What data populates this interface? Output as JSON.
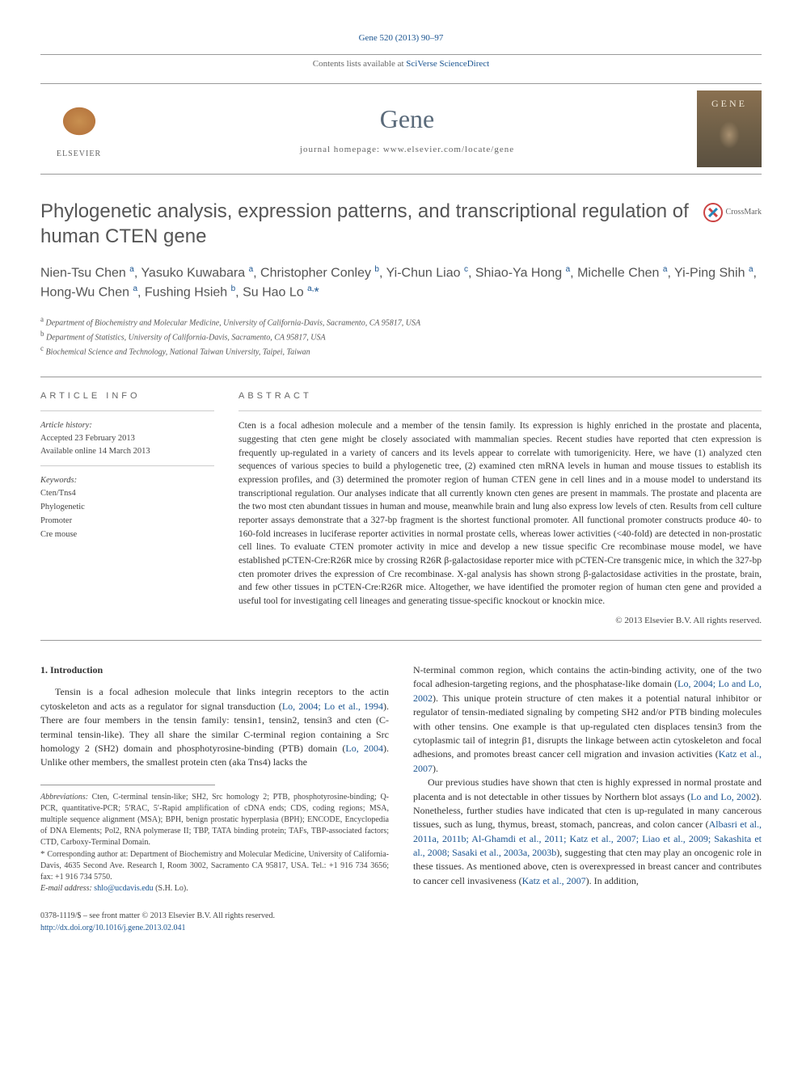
{
  "header": {
    "citation_text": "Gene 520 (2013) 90–97",
    "citation_link_color": "#1a5490",
    "contents_text": "Contents lists available at ",
    "contents_link": "SciVerse ScienceDirect",
    "journal_name": "Gene",
    "homepage_label": "journal homepage: ",
    "homepage_url": "www.elsevier.com/locate/gene",
    "publisher": "ELSEVIER",
    "cover_text": "GENE"
  },
  "article": {
    "title": "Phylogenetic analysis, expression patterns, and transcriptional regulation of human CTEN gene",
    "crossmark_label": "CrossMark",
    "authors_html": "Nien-Tsu Chen <sup>a</sup>, Yasuko Kuwabara <sup>a</sup>, Christopher Conley <sup>b</sup>, Yi-Chun Liao <sup>c</sup>, Shiao-Ya Hong <sup>a</sup>, Michelle Chen <sup>a</sup>, Yi-Ping Shih <sup>a</sup>, Hong-Wu Chen <sup>a</sup>, Fushing Hsieh <sup>b</sup>, Su Hao Lo <sup>a,</sup><span class='star'>*</span>",
    "affiliations": [
      {
        "sup": "a",
        "text": "Department of Biochemistry and Molecular Medicine, University of California-Davis, Sacramento, CA 95817, USA"
      },
      {
        "sup": "b",
        "text": "Department of Statistics, University of California-Davis, Sacramento, CA 95817, USA"
      },
      {
        "sup": "c",
        "text": "Biochemical Science and Technology, National Taiwan University, Taipei, Taiwan"
      }
    ]
  },
  "info": {
    "head": "article info",
    "history_label": "Article history:",
    "accepted": "Accepted 23 February 2013",
    "online": "Available online 14 March 2013",
    "keywords_label": "Keywords:",
    "keywords": [
      "Cten/Tns4",
      "Phylogenetic",
      "Promoter",
      "Cre mouse"
    ]
  },
  "abstract": {
    "head": "abstract",
    "text": "Cten is a focal adhesion molecule and a member of the tensin family. Its expression is highly enriched in the prostate and placenta, suggesting that cten gene might be closely associated with mammalian species. Recent studies have reported that cten expression is frequently up-regulated in a variety of cancers and its levels appear to correlate with tumorigenicity. Here, we have (1) analyzed cten sequences of various species to build a phylogenetic tree, (2) examined cten mRNA levels in human and mouse tissues to establish its expression profiles, and (3) determined the promoter region of human CTEN gene in cell lines and in a mouse model to understand its transcriptional regulation. Our analyses indicate that all currently known cten genes are present in mammals. The prostate and placenta are the two most cten abundant tissues in human and mouse, meanwhile brain and lung also express low levels of cten. Results from cell culture reporter assays demonstrate that a 327-bp fragment is the shortest functional promoter. All functional promoter constructs produce 40- to 160-fold increases in luciferase reporter activities in normal prostate cells, whereas lower activities (<40-fold) are detected in non-prostatic cell lines. To evaluate CTEN promoter activity in mice and develop a new tissue specific Cre recombinase mouse model, we have established pCTEN-Cre:R26R mice by crossing R26R β-galactosidase reporter mice with pCTEN-Cre transgenic mice, in which the 327-bp cten promoter drives the expression of Cre recombinase. X-gal analysis has shown strong β-galactosidase activities in the prostate, brain, and few other tissues in pCTEN-Cre:R26R mice. Altogether, we have identified the promoter region of human cten gene and provided a useful tool for investigating cell lineages and generating tissue-specific knockout or knockin mice.",
    "copyright": "© 2013 Elsevier B.V. All rights reserved."
  },
  "body": {
    "intro_head": "1. Introduction",
    "left_col": {
      "p1": "Tensin is a focal adhesion molecule that links integrin receptors to the actin cytoskeleton and acts as a regulator for signal transduction (<span class='citation'>Lo, 2004; Lo et al., 1994</span>). There are four members in the tensin family: tensin1, tensin2, tensin3 and cten (C-terminal tensin-like). They all share the similar C-terminal region containing a Src homology 2 (SH2) domain and phosphotyrosine-binding (PTB) domain (<span class='citation'>Lo, 2004</span>). Unlike other members, the smallest protein cten (aka Tns4) lacks the"
    },
    "right_col": {
      "p1": "N-terminal common region, which contains the actin-binding activity, one of the two focal adhesion-targeting regions, and the phosphatase-like domain (<span class='citation'>Lo, 2004; Lo and Lo, 2002</span>). This unique protein structure of cten makes it a potential natural inhibitor or regulator of tensin-mediated signaling by competing SH2 and/or PTB binding molecules with other tensins. One example is that up-regulated cten displaces tensin3 from the cytoplasmic tail of integrin β1, disrupts the linkage between actin cytoskeleton and focal adhesions, and promotes breast cancer cell migration and invasion activities (<span class='citation'>Katz et al., 2007</span>).",
      "p2": "Our previous studies have shown that cten is highly expressed in normal prostate and placenta and is not detectable in other tissues by Northern blot assays (<span class='citation'>Lo and Lo, 2002</span>). Nonetheless, further studies have indicated that cten is up-regulated in many cancerous tissues, such as lung, thymus, breast, stomach, pancreas, and colon cancer (<span class='citation'>Albasri et al., 2011a, 2011b; Al-Ghamdi et al., 2011; Katz et al., 2007; Liao et al., 2009; Sakashita et al., 2008; Sasaki et al., 2003a, 2003b</span>), suggesting that cten may play an oncogenic role in these tissues. As mentioned above, cten is overexpressed in breast cancer and contributes to cancer cell invasiveness (<span class='citation'>Katz et al., 2007</span>). In addition,"
    }
  },
  "footnotes": {
    "abbrev_label": "Abbreviations:",
    "abbrev_text": " Cten, C-terminal tensin-like; SH2, Src homology 2; PTB, phosphotyrosine-binding; Q-PCR, quantitative-PCR; 5′RAC, 5′-Rapid amplification of cDNA ends; CDS, coding regions; MSA, multiple sequence alignment (MSA); BPH, benign prostatic hyperplasia (BPH); ENCODE, Encyclopedia of DNA Elements; Pol2, RNA polymerase II; TBP, TATA binding protein; TAFs, TBP-associated factors; CTD, Carboxy-Terminal Domain.",
    "corr_label": "Corresponding author at:",
    "corr_text": " Department of Biochemistry and Molecular Medicine, University of California-Davis, 4635 Second Ave. Research I, Room 3002, Sacramento CA 95817, USA. Tel.: +1 916 734 3656; fax: +1 916 734 5750.",
    "email_label": "E-mail address: ",
    "email": "shlo@ucdavis.edu",
    "email_person": " (S.H. Lo)."
  },
  "bottom": {
    "front_matter": "0378-1119/$ – see front matter © 2013 Elsevier B.V. All rights reserved.",
    "doi": "http://dx.doi.org/10.1016/j.gene.2013.02.041"
  },
  "colors": {
    "link": "#1a5490",
    "text": "#333333",
    "heading_gray": "#5a6a7a",
    "rule": "#999999"
  },
  "fonts": {
    "body": "Georgia, Times New Roman, serif",
    "sans": "Helvetica Neue, Arial, sans-serif",
    "title_size_pt": 24,
    "authors_size_pt": 16,
    "abstract_size_pt": 11.5,
    "body_size_pt": 12,
    "footnote_size_pt": 10
  }
}
